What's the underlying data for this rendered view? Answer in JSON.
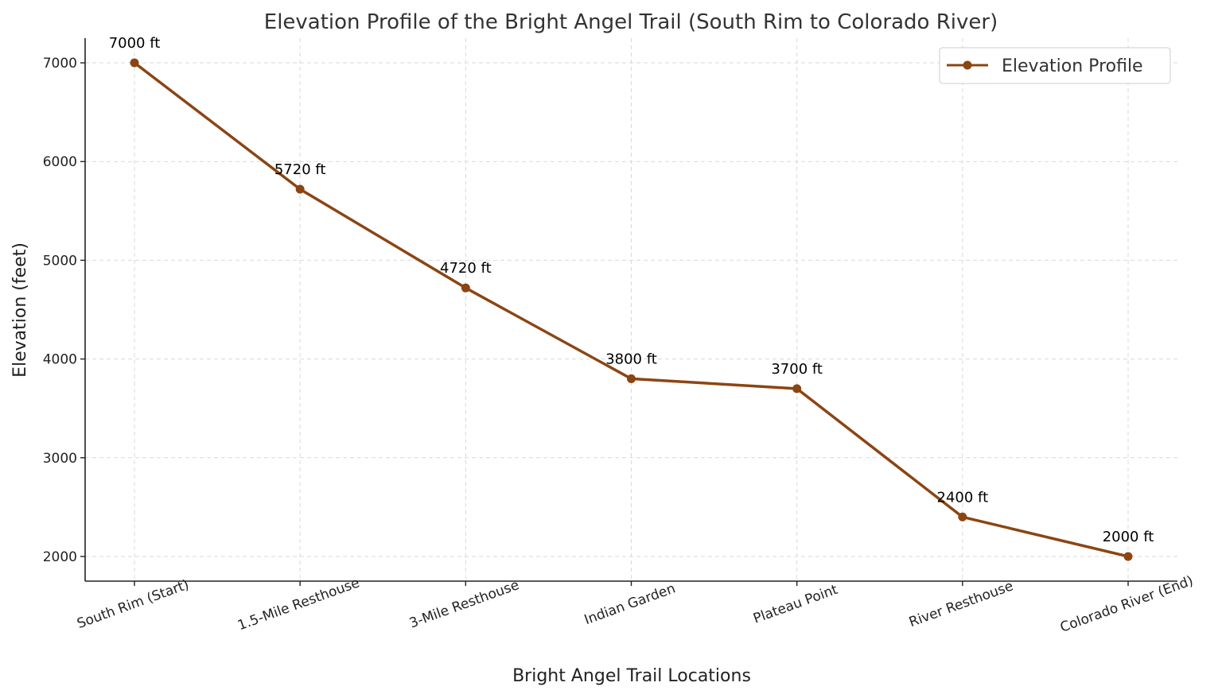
{
  "chart_data": {
    "type": "line",
    "title": "Elevation Profile of the Bright Angel Trail (South Rim to Colorado River)",
    "xlabel": "Bright Angel Trail Locations",
    "ylabel": "Elevation (feet)",
    "categories": [
      "South Rim (Start)",
      "1.5-Mile Resthouse",
      "3-Mile Resthouse",
      "Indian Garden",
      "Plateau Point",
      "River Resthouse",
      "Colorado River (End)"
    ],
    "series": [
      {
        "name": "Elevation Profile",
        "values": [
          7000,
          5720,
          4720,
          3800,
          3700,
          2400,
          2000
        ],
        "color": "#8B4513"
      }
    ],
    "data_labels": [
      "7000 ft",
      "5720 ft",
      "4720 ft",
      "3800 ft",
      "3700 ft",
      "2400 ft",
      "2000 ft"
    ],
    "yticks": [
      2000,
      3000,
      4000,
      5000,
      6000,
      7000
    ],
    "ylim": [
      1750,
      7250
    ],
    "grid": true,
    "legend_position": "top-right",
    "xtick_rotation": -20
  }
}
